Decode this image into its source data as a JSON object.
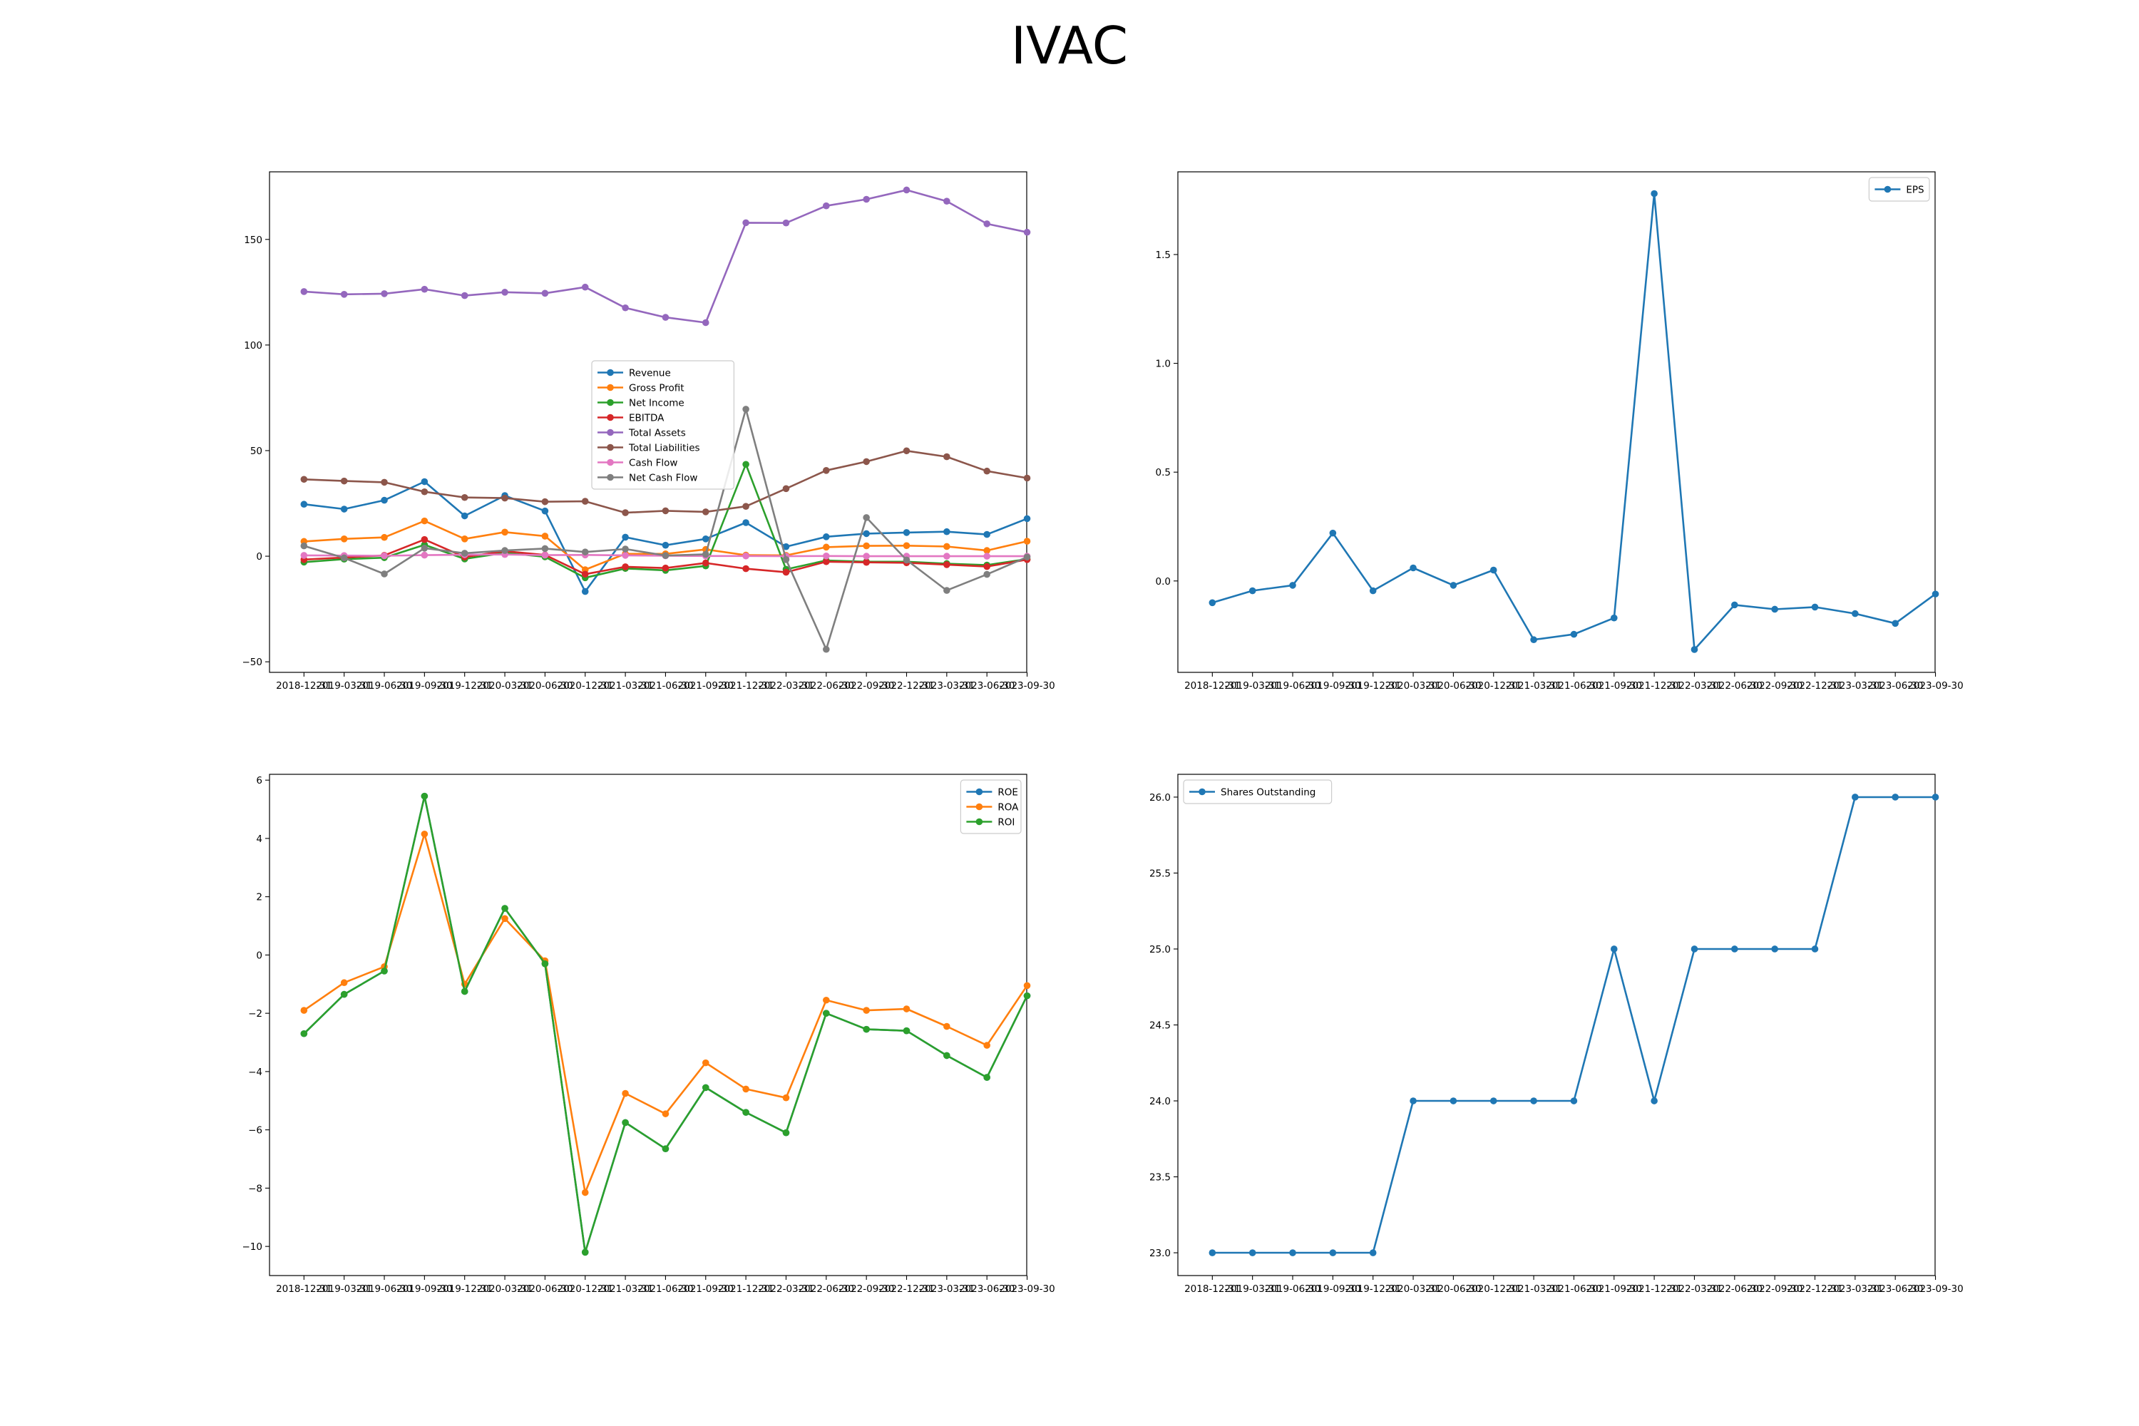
{
  "suptitle": "IVAC",
  "chart_data": [
    {
      "type": "line",
      "x": [
        "2018-12-31",
        "2019-03-31",
        "2019-06-30",
        "2019-09-30",
        "2019-12-31",
        "2020-03-31",
        "2020-06-30",
        "2020-12-31",
        "2021-03-31",
        "2021-06-30",
        "2021-09-30",
        "2021-12-31",
        "2022-03-31",
        "2022-06-30",
        "2022-09-30",
        "2022-12-31",
        "2023-03-31",
        "2023-06-30",
        "2023-09-30"
      ],
      "ylim": [
        -55,
        182
      ],
      "yticks": [
        -50,
        0,
        50,
        100,
        150
      ],
      "grid": false,
      "legend_position": "center",
      "series": [
        {
          "name": "Revenue",
          "color": "#1f77b4",
          "values": [
            24.6,
            22.3,
            26.5,
            35.3,
            19.1,
            28.7,
            21.4,
            -16.7,
            9.0,
            5.2,
            8.2,
            15.9,
            4.5,
            9.2,
            10.7,
            11.2,
            11.6,
            10.3,
            17.8
          ]
        },
        {
          "name": "Gross Profit",
          "color": "#ff7f0e",
          "values": [
            7.0,
            8.2,
            8.9,
            16.7,
            8.2,
            11.4,
            9.5,
            -6.4,
            1.1,
            1.1,
            3.2,
            0.5,
            0.4,
            4.3,
            4.9,
            5.0,
            4.6,
            2.7,
            7.1
          ]
        },
        {
          "name": "Net Income",
          "color": "#2ca02c",
          "values": [
            -2.8,
            -1.4,
            -0.7,
            5.4,
            -1.3,
            1.6,
            -0.3,
            -10.2,
            -5.8,
            -6.7,
            -4.6,
            43.5,
            -6.2,
            -2.0,
            -2.6,
            -2.6,
            -3.5,
            -4.2,
            -1.4
          ]
        },
        {
          "name": "EBITDA",
          "color": "#d62728",
          "values": [
            -1.6,
            -0.6,
            0.4,
            7.9,
            -0.4,
            2.4,
            0.6,
            -8.5,
            -5.0,
            -5.6,
            -3.2,
            -5.9,
            -7.6,
            -2.6,
            -2.9,
            -3.1,
            -4.0,
            -4.9,
            -1.6
          ]
        },
        {
          "name": "Total Assets",
          "color": "#9467bd",
          "values": [
            125.3,
            124.0,
            124.3,
            126.4,
            123.4,
            125.0,
            124.5,
            127.4,
            117.6,
            113.1,
            110.6,
            157.9,
            157.8,
            165.9,
            169.0,
            173.4,
            168.1,
            157.4,
            153.4
          ]
        },
        {
          "name": "Total Liabilities",
          "color": "#8c564b",
          "values": [
            36.4,
            35.6,
            35.0,
            30.5,
            27.8,
            27.5,
            25.8,
            26.0,
            20.6,
            21.5,
            21.0,
            23.6,
            32.0,
            40.6,
            44.8,
            49.9,
            47.1,
            40.3,
            37.0
          ]
        },
        {
          "name": "Cash Flow",
          "color": "#e377c2",
          "values": [
            0.4,
            0.3,
            0.2,
            0.5,
            0.7,
            0.8,
            0.5,
            0.6,
            0.4,
            0.2,
            0.1,
            0.1,
            0.0,
            0.1,
            0.0,
            0.0,
            0.0,
            0.0,
            0.0
          ]
        },
        {
          "name": "Net Cash Flow",
          "color": "#7f7f7f",
          "values": [
            4.9,
            -0.8,
            -8.4,
            3.8,
            1.4,
            2.7,
            3.6,
            2.0,
            3.4,
            0.3,
            0.9,
            69.6,
            -1.6,
            -44.1,
            18.3,
            -1.8,
            -16.2,
            -8.6,
            -0.4
          ]
        }
      ]
    },
    {
      "type": "line",
      "x": [
        "2018-12-31",
        "2019-03-31",
        "2019-06-30",
        "2019-09-30",
        "2019-12-31",
        "2020-03-31",
        "2020-06-30",
        "2020-12-31",
        "2021-03-31",
        "2021-06-30",
        "2021-09-30",
        "2021-12-31",
        "2022-03-31",
        "2022-06-30",
        "2022-09-30",
        "2022-12-31",
        "2023-03-31",
        "2023-06-30",
        "2023-09-30"
      ],
      "ylim": [
        -0.42,
        1.88
      ],
      "yticks": [
        0.0,
        0.5,
        1.0,
        1.5
      ],
      "grid": false,
      "legend_position": "upper right",
      "series": [
        {
          "name": "EPS",
          "color": "#1f77b4",
          "values": [
            -0.1,
            -0.045,
            -0.02,
            0.22,
            -0.045,
            0.06,
            -0.02,
            0.05,
            -0.27,
            -0.245,
            -0.17,
            1.78,
            -0.315,
            -0.11,
            -0.13,
            -0.12,
            -0.15,
            -0.195,
            -0.06
          ]
        }
      ]
    },
    {
      "type": "line",
      "x": [
        "2018-12-31",
        "2019-03-31",
        "2019-06-30",
        "2019-09-30",
        "2019-12-31",
        "2020-03-31",
        "2020-06-30",
        "2020-12-31",
        "2021-03-31",
        "2021-06-30",
        "2021-09-30",
        "2021-12-31",
        "2022-03-31",
        "2022-06-30",
        "2022-09-30",
        "2022-12-31",
        "2023-03-31",
        "2023-06-30",
        "2023-09-30"
      ],
      "ylim": [
        -11.0,
        6.2
      ],
      "yticks": [
        -10,
        -8,
        -6,
        -4,
        -2,
        0,
        2,
        4,
        6
      ],
      "grid": false,
      "legend_position": "upper right",
      "series": [
        {
          "name": "ROE",
          "color": "#1f77b4",
          "values": [
            -2.7,
            -1.35,
            -0.55,
            5.45,
            -1.25,
            1.6,
            -0.3,
            -10.2,
            -5.75,
            -6.65,
            -4.55,
            -5.4,
            -6.1,
            -2.0,
            -2.55,
            -2.6,
            -3.45,
            -4.2,
            -1.4
          ]
        },
        {
          "name": "ROA",
          "color": "#ff7f0e",
          "values": [
            -1.9,
            -0.95,
            -0.4,
            4.15,
            -1.0,
            1.25,
            -0.2,
            -8.15,
            -4.75,
            -5.45,
            -3.7,
            -4.6,
            -4.9,
            -1.55,
            -1.9,
            -1.85,
            -2.45,
            -3.1,
            -1.05
          ]
        },
        {
          "name": "ROI",
          "color": "#2ca02c",
          "values": [
            -2.7,
            -1.35,
            -0.55,
            5.45,
            -1.25,
            1.6,
            -0.3,
            -10.2,
            -5.75,
            -6.65,
            -4.55,
            -5.4,
            -6.1,
            -2.0,
            -2.55,
            -2.6,
            -3.45,
            -4.2,
            -1.4
          ]
        }
      ]
    },
    {
      "type": "line",
      "x": [
        "2018-12-31",
        "2019-03-31",
        "2019-06-30",
        "2019-09-30",
        "2019-12-31",
        "2020-03-31",
        "2020-06-30",
        "2020-12-31",
        "2021-03-31",
        "2021-06-30",
        "2021-09-30",
        "2021-12-31",
        "2022-03-31",
        "2022-06-30",
        "2022-09-30",
        "2022-12-31",
        "2023-03-31",
        "2023-06-30",
        "2023-09-30"
      ],
      "ylim": [
        22.85,
        26.15
      ],
      "yticks": [
        23.0,
        23.5,
        24.0,
        24.5,
        25.0,
        25.5,
        26.0
      ],
      "grid": false,
      "legend_position": "upper left",
      "series": [
        {
          "name": "Shares Outstanding",
          "color": "#1f77b4",
          "values": [
            23,
            23,
            23,
            23,
            23,
            24,
            24,
            24,
            24,
            24,
            25,
            24,
            25,
            25,
            25,
            25,
            26,
            26,
            26
          ]
        }
      ]
    }
  ]
}
